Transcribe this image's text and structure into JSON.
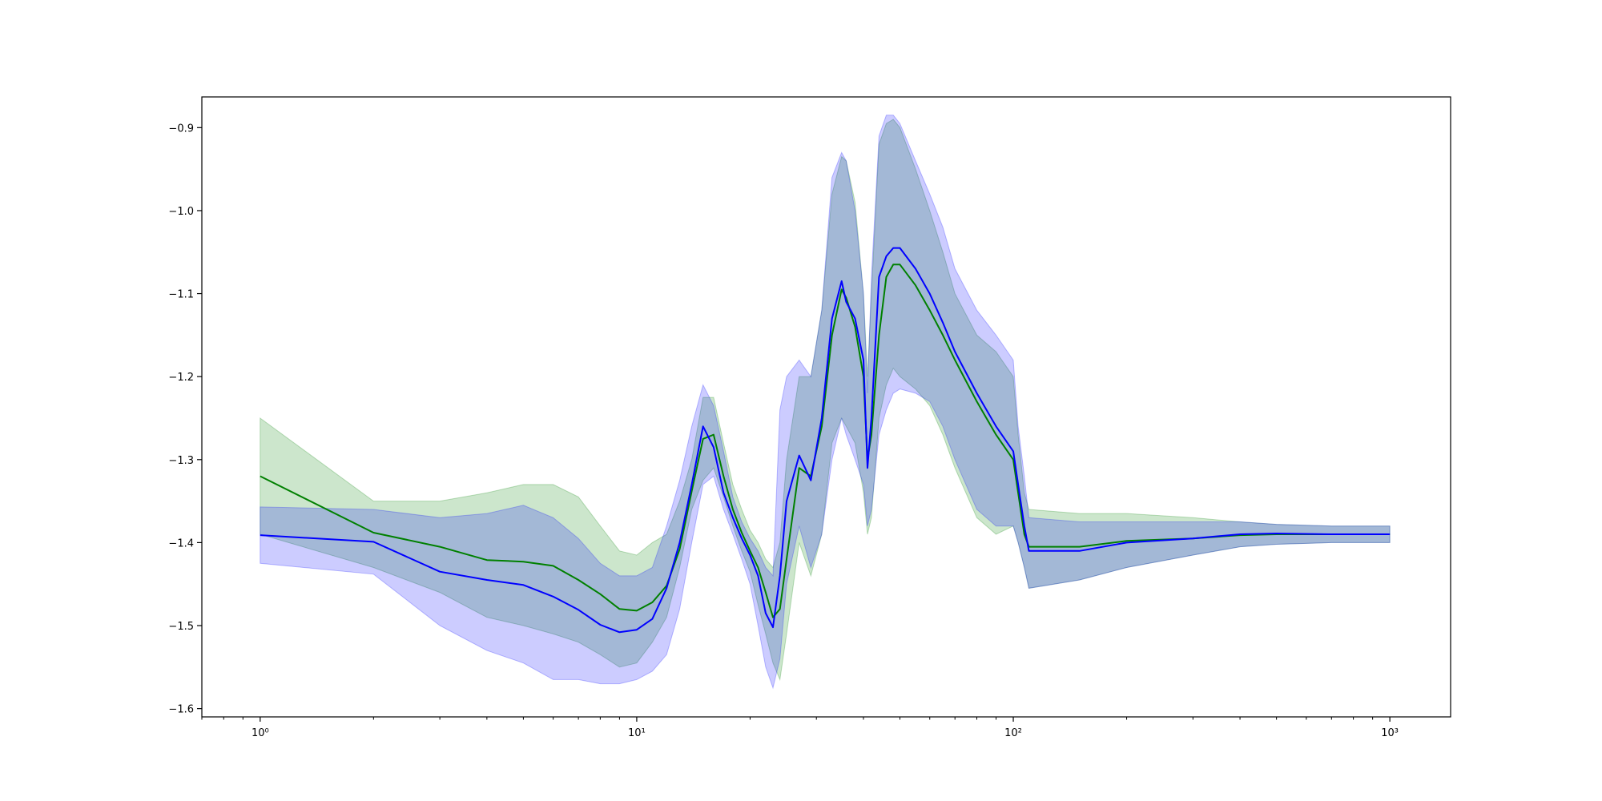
{
  "chart_data": {
    "type": "line",
    "title": "",
    "xlabel": "",
    "ylabel": "",
    "x_scale": "log",
    "xlim": [
      0.7,
      1450
    ],
    "ylim": [
      -1.61,
      -0.863
    ],
    "grid": false,
    "legend": "none",
    "x_ticks": [
      {
        "value": 1,
        "label": "10⁰"
      },
      {
        "value": 10,
        "label": "10¹"
      },
      {
        "value": 100,
        "label": "10²"
      },
      {
        "value": 1000,
        "label": "10³"
      }
    ],
    "y_ticks": [
      {
        "value": -0.9,
        "label": "−0.9"
      },
      {
        "value": -1.0,
        "label": "−1.0"
      },
      {
        "value": -1.1,
        "label": "−1.1"
      },
      {
        "value": -1.2,
        "label": "−1.2"
      },
      {
        "value": -1.3,
        "label": "−1.3"
      },
      {
        "value": -1.4,
        "label": "−1.4"
      },
      {
        "value": -1.5,
        "label": "−1.5"
      },
      {
        "value": -1.6,
        "label": "−1.6"
      }
    ],
    "x": [
      1,
      2,
      3,
      4,
      5,
      6,
      7,
      8,
      9,
      10,
      11,
      12,
      13,
      14,
      15,
      16,
      17,
      18,
      19,
      20,
      21,
      22,
      23,
      24,
      25,
      27,
      29,
      31,
      33,
      35,
      36,
      38,
      40,
      41,
      42,
      44,
      46,
      48,
      50,
      55,
      60,
      65,
      70,
      80,
      90,
      100,
      103,
      107,
      110,
      150,
      200,
      300,
      400,
      500,
      700,
      1000
    ],
    "series": [
      {
        "color": "#008000",
        "band_color": "#008000",
        "values": [
          -1.32,
          -1.388,
          -1.405,
          -1.421,
          -1.423,
          -1.428,
          -1.445,
          -1.462,
          -1.48,
          -1.482,
          -1.472,
          -1.452,
          -1.408,
          -1.338,
          -1.275,
          -1.27,
          -1.32,
          -1.36,
          -1.388,
          -1.41,
          -1.43,
          -1.46,
          -1.49,
          -1.48,
          -1.42,
          -1.31,
          -1.32,
          -1.26,
          -1.15,
          -1.095,
          -1.105,
          -1.14,
          -1.2,
          -1.3,
          -1.27,
          -1.15,
          -1.08,
          -1.065,
          -1.065,
          -1.09,
          -1.12,
          -1.15,
          -1.18,
          -1.23,
          -1.27,
          -1.3,
          -1.34,
          -1.39,
          -1.405,
          -1.405,
          -1.398,
          -1.395,
          -1.391,
          -1.39,
          -1.39,
          -1.39
        ],
        "lower": [
          -1.39,
          -1.43,
          -1.46,
          -1.49,
          -1.5,
          -1.51,
          -1.52,
          -1.535,
          -1.55,
          -1.545,
          -1.52,
          -1.49,
          -1.43,
          -1.36,
          -1.325,
          -1.31,
          -1.345,
          -1.38,
          -1.41,
          -1.435,
          -1.475,
          -1.51,
          -1.545,
          -1.565,
          -1.51,
          -1.4,
          -1.44,
          -1.39,
          -1.28,
          -1.25,
          -1.26,
          -1.28,
          -1.34,
          -1.39,
          -1.37,
          -1.25,
          -1.21,
          -1.19,
          -1.2,
          -1.215,
          -1.235,
          -1.27,
          -1.31,
          -1.37,
          -1.39,
          -1.38,
          -1.4,
          -1.43,
          -1.455,
          -1.445,
          -1.43,
          -1.415,
          -1.405,
          -1.402,
          -1.4,
          -1.4
        ],
        "upper": [
          -1.25,
          -1.35,
          -1.35,
          -1.34,
          -1.33,
          -1.33,
          -1.345,
          -1.38,
          -1.41,
          -1.415,
          -1.4,
          -1.39,
          -1.35,
          -1.3,
          -1.225,
          -1.225,
          -1.28,
          -1.33,
          -1.36,
          -1.385,
          -1.4,
          -1.42,
          -1.43,
          -1.4,
          -1.3,
          -1.2,
          -1.2,
          -1.12,
          -0.98,
          -0.935,
          -0.94,
          -0.99,
          -1.1,
          -1.2,
          -1.1,
          -0.92,
          -0.895,
          -0.89,
          -0.9,
          -0.95,
          -1.0,
          -1.05,
          -1.1,
          -1.15,
          -1.17,
          -1.2,
          -1.27,
          -1.34,
          -1.36,
          -1.365,
          -1.365,
          -1.37,
          -1.375,
          -1.378,
          -1.38,
          -1.38
        ]
      },
      {
        "color": "#0000ff",
        "band_color": "#0000ff",
        "values": [
          -1.391,
          -1.399,
          -1.435,
          -1.445,
          -1.451,
          -1.465,
          -1.481,
          -1.499,
          -1.508,
          -1.505,
          -1.492,
          -1.455,
          -1.4,
          -1.33,
          -1.26,
          -1.285,
          -1.34,
          -1.37,
          -1.395,
          -1.415,
          -1.44,
          -1.485,
          -1.502,
          -1.44,
          -1.35,
          -1.295,
          -1.325,
          -1.25,
          -1.13,
          -1.085,
          -1.11,
          -1.13,
          -1.18,
          -1.31,
          -1.25,
          -1.08,
          -1.055,
          -1.045,
          -1.045,
          -1.07,
          -1.1,
          -1.135,
          -1.17,
          -1.22,
          -1.26,
          -1.29,
          -1.33,
          -1.38,
          -1.41,
          -1.41,
          -1.4,
          -1.395,
          -1.39,
          -1.389,
          -1.39,
          -1.39
        ],
        "lower": [
          -1.425,
          -1.438,
          -1.5,
          -1.53,
          -1.545,
          -1.565,
          -1.565,
          -1.57,
          -1.57,
          -1.565,
          -1.555,
          -1.535,
          -1.48,
          -1.4,
          -1.33,
          -1.32,
          -1.36,
          -1.39,
          -1.42,
          -1.45,
          -1.5,
          -1.55,
          -1.575,
          -1.54,
          -1.45,
          -1.38,
          -1.43,
          -1.39,
          -1.3,
          -1.25,
          -1.27,
          -1.3,
          -1.33,
          -1.38,
          -1.36,
          -1.27,
          -1.24,
          -1.22,
          -1.215,
          -1.22,
          -1.23,
          -1.26,
          -1.3,
          -1.36,
          -1.38,
          -1.38,
          -1.4,
          -1.43,
          -1.455,
          -1.445,
          -1.43,
          -1.415,
          -1.405,
          -1.402,
          -1.4,
          -1.4
        ],
        "upper": [
          -1.357,
          -1.36,
          -1.37,
          -1.365,
          -1.355,
          -1.37,
          -1.395,
          -1.425,
          -1.44,
          -1.44,
          -1.43,
          -1.38,
          -1.325,
          -1.26,
          -1.21,
          -1.235,
          -1.29,
          -1.345,
          -1.375,
          -1.395,
          -1.41,
          -1.43,
          -1.44,
          -1.24,
          -1.2,
          -1.18,
          -1.2,
          -1.12,
          -0.96,
          -0.93,
          -0.94,
          -1.0,
          -1.1,
          -1.22,
          -1.08,
          -0.91,
          -0.885,
          -0.885,
          -0.895,
          -0.94,
          -0.98,
          -1.02,
          -1.07,
          -1.12,
          -1.15,
          -1.18,
          -1.26,
          -1.32,
          -1.37,
          -1.375,
          -1.375,
          -1.375,
          -1.375,
          -1.378,
          -1.38,
          -1.38
        ]
      }
    ]
  }
}
